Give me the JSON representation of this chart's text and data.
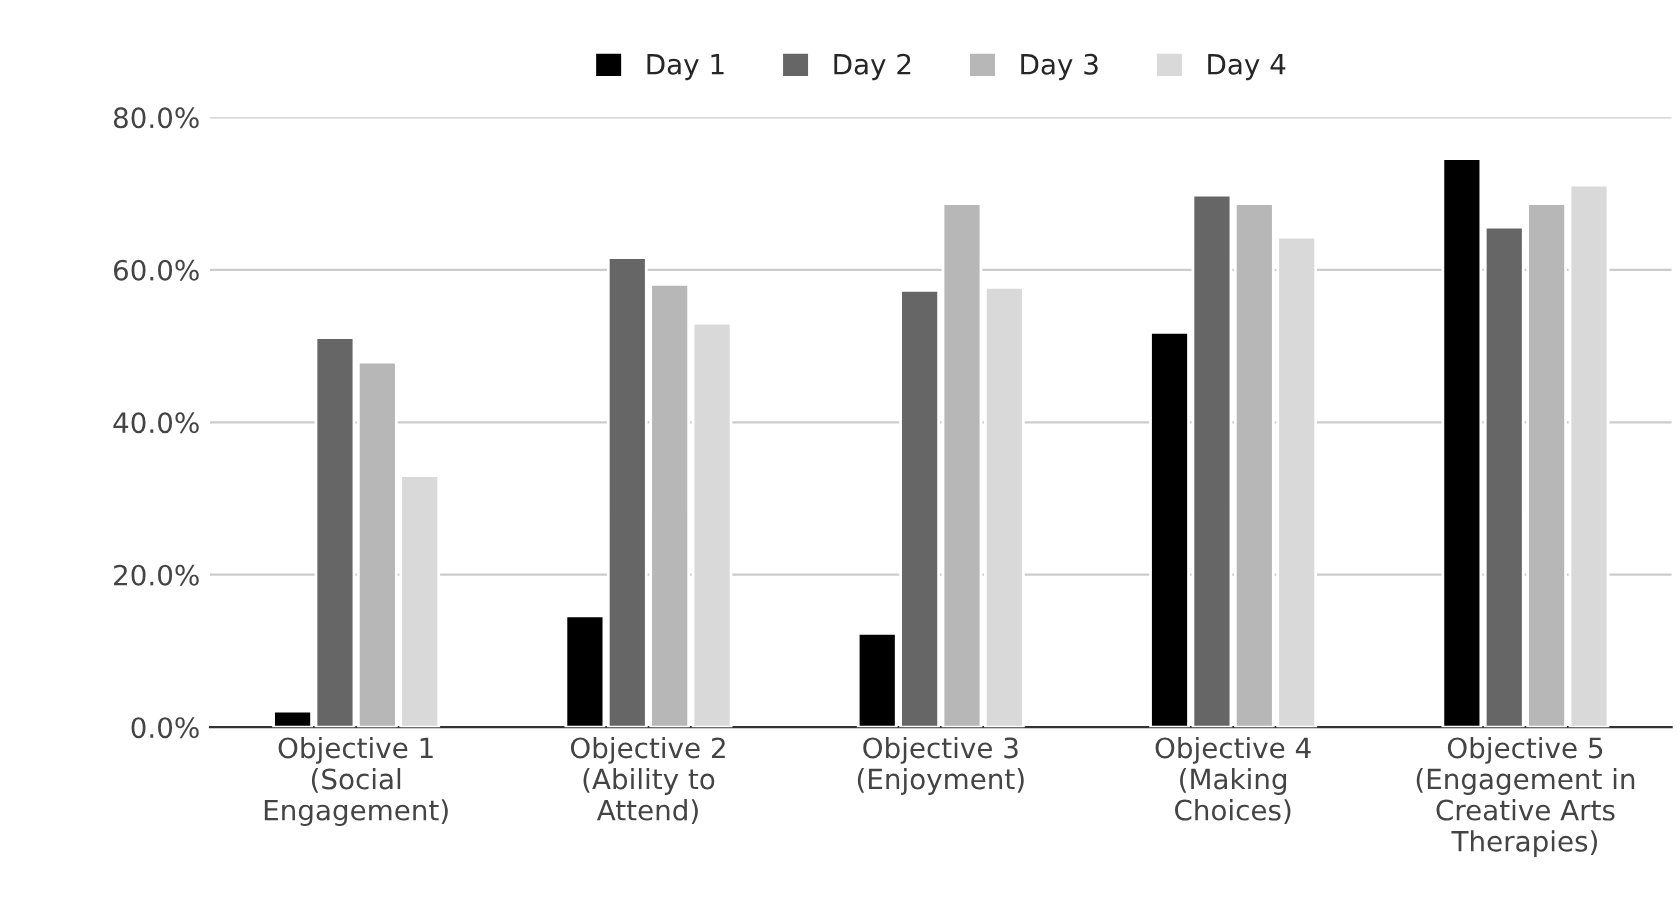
{
  "chart_data": {
    "type": "bar",
    "categories": [
      "Objective 1\n(Social\nEngagement)",
      "Objective 2\n(Ability to\nAttend)",
      "Objective 3\n(Enjoyment)",
      "Objective 4\n(Making\nChoices)",
      "Objective 5\n(Engagement in\nCreative Arts\nTherapies)"
    ],
    "series": [
      {
        "name": "Day 1",
        "color": "#000000",
        "values": [
          2.1,
          14.6,
          12.3,
          51.8,
          74.6
        ]
      },
      {
        "name": "Day 2",
        "color": "#666666",
        "values": [
          51.1,
          61.6,
          57.3,
          69.8,
          65.6
        ]
      },
      {
        "name": "Day 3",
        "color": "#b7b7b7",
        "values": [
          47.9,
          58.1,
          68.7,
          68.7,
          68.7
        ]
      },
      {
        "name": "Day 4",
        "color": "#d9d9d9",
        "values": [
          33.0,
          53.0,
          57.7,
          64.3,
          71.1
        ]
      }
    ],
    "ylim": [
      0,
      80
    ],
    "yticks": [
      {
        "value": 0,
        "label": "0.0%"
      },
      {
        "value": 20,
        "label": "20.0%"
      },
      {
        "value": 40,
        "label": "40.0%"
      },
      {
        "value": 60,
        "label": "60.0%"
      },
      {
        "value": 80,
        "label": "80.0%"
      }
    ],
    "grid": "y",
    "legend": "top"
  }
}
